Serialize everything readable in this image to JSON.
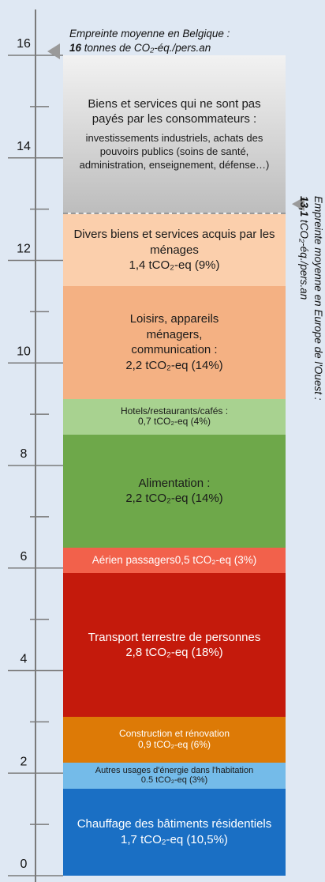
{
  "chart_data": {
    "type": "stacked_bar",
    "ylim": [
      0,
      16
    ],
    "yticks": [
      0,
      2,
      4,
      6,
      8,
      10,
      12,
      14,
      16
    ],
    "yminorticks": [
      1,
      3,
      5,
      7,
      9,
      11,
      13,
      15
    ],
    "series": [
      {
        "name": "Chauffage des bâtiments résidentiels",
        "values": [
          1.7
        ],
        "value_labels": [
          "1,7 tCO₂-eq (10,5%)"
        ],
        "color": "#1a6fc4",
        "label_color": "#ffffff"
      },
      {
        "name": "Autres usages d'énergie dans l'habitation",
        "values": [
          0.5
        ],
        "value_labels": [
          "0.5 tCO₂-eq (3%)"
        ],
        "color": "#74bbe9",
        "label_color": "#1a1a1a"
      },
      {
        "name": "Construction et rénovation",
        "values": [
          0.9
        ],
        "value_labels": [
          "0,9 tCO₂-eq (6%)"
        ],
        "color": "#dd7a06",
        "label_color": "#ffffff"
      },
      {
        "name": "Transport terrestre de personnes",
        "values": [
          2.8
        ],
        "value_labels": [
          "2,8 tCO₂-eq (18%)"
        ],
        "color": "#c41a0c",
        "label_color": "#ffffff"
      },
      {
        "name": "Aérien passagers",
        "values": [
          0.5
        ],
        "value_labels": [
          "0,5 tCO₂-eq (3%)"
        ],
        "color": "#f2614b",
        "label_color": "#ffffff"
      },
      {
        "name": "Alimentation :",
        "values": [
          2.2
        ],
        "value_labels": [
          "2,2 tCO₂-eq (14%)"
        ],
        "color": "#6ea84a",
        "label_color": "#1a1a1a"
      },
      {
        "name": "Hotels/restaurants/cafés :",
        "values": [
          0.7
        ],
        "value_labels": [
          "0,7 tCO₂-eq (4%)"
        ],
        "color": "#a8d290",
        "label_color": "#1a1a1a"
      },
      {
        "name": "Loisirs, appareils ménagers, communication :",
        "values": [
          2.2
        ],
        "value_labels": [
          "2,2 tCO₂-eq (14%)"
        ],
        "color": "#f4b183",
        "label_color": "#1a1a1a"
      },
      {
        "name": "Divers biens et services acquis par les ménages",
        "values": [
          1.4
        ],
        "value_labels": [
          "1,4 tCO₂-eq (9%)"
        ],
        "color": "#fbcfac",
        "label_color": "#1a1a1a"
      },
      {
        "name": "Biens et services qui ne sont pas payés par les consommateurs :",
        "values": [
          3.1
        ],
        "value_labels": [
          "investissements industriels, achats des pouvoirs publics (soins de santé, administration, enseignement, défense…)"
        ],
        "color": "#d8d8d8",
        "label_color": "#1a1a1a"
      }
    ],
    "annotations": [
      {
        "text": "Empreinte moyenne en Belgique :",
        "value": 16,
        "label": "16",
        "unit": " tonnes de CO₂-éq./pers.an"
      },
      {
        "text": "Empreinte moyenne en Europe de l'Ouest :",
        "value": 13.1,
        "label": "13,1",
        "unit": " tCO₂-éq./pers.an"
      }
    ]
  }
}
